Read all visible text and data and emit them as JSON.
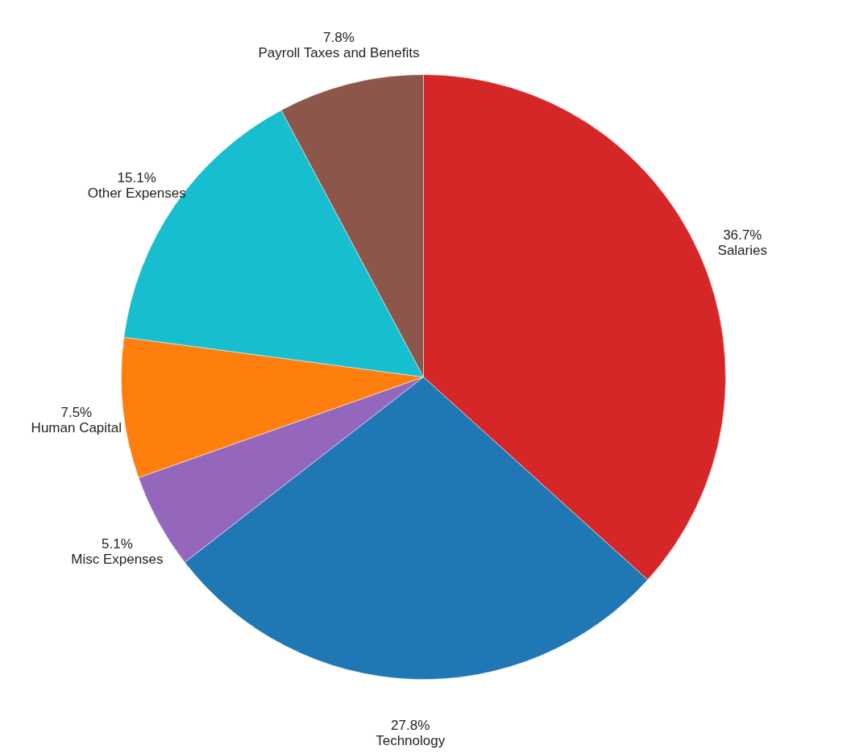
{
  "chart_data": {
    "type": "pie",
    "categories": [
      "Salaries",
      "Technology",
      "Misc Expenses",
      "Human Capital",
      "Other Expenses",
      "Payroll Taxes and Benefits"
    ],
    "values": [
      36.7,
      27.8,
      5.1,
      7.5,
      15.1,
      7.8
    ],
    "colors": [
      "#d62728",
      "#1f77b4",
      "#9467bd",
      "#ff7f0e",
      "#17becf",
      "#8c564b"
    ],
    "value_labels": [
      "36.7%",
      "27.8%",
      "5.1%",
      "7.5%",
      "15.1%",
      "7.8%"
    ]
  }
}
